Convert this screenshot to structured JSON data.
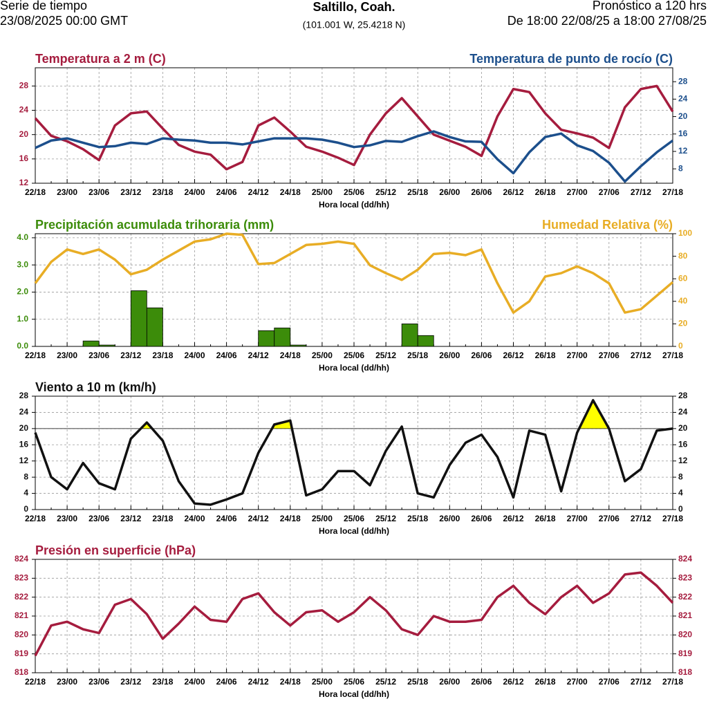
{
  "header": {
    "left_1": "Serie de tiempo",
    "left_2": "23/08/2025 00:00 GMT",
    "title": "Saltillo, Coah.",
    "subtitle": "(101.001 W, 25.4218 N)",
    "right_1": "Pronóstico a 120 hrs",
    "right_2": "De 18:00 22/08/25 a 18:00 27/08/25"
  },
  "chart_data": [
    {
      "type": "line",
      "xlabel": "Hora local (dd/hh)",
      "grid": true,
      "categories": [
        "22/18",
        null,
        "23/00",
        null,
        "23/06",
        null,
        "23/12",
        null,
        "23/18",
        null,
        "24/00",
        null,
        "24/06",
        null,
        "24/12",
        null,
        "24/18",
        null,
        "25/00",
        null,
        "25/06",
        null,
        "25/12",
        null,
        "25/18",
        null,
        "26/00",
        null,
        "26/06",
        null,
        "26/12",
        null,
        "26/18",
        null,
        "27/00",
        null,
        "27/06",
        null,
        "27/12",
        null,
        "27/18"
      ],
      "ylim": [
        12,
        31
      ],
      "yticks": [
        12,
        16,
        20,
        24,
        28
      ],
      "y2lim": [
        4.7,
        31.2
      ],
      "y2ticks": [
        8,
        12,
        16,
        20,
        24,
        28
      ],
      "series": [
        {
          "name": "Temperatura a 2 m (C)",
          "color": "#a51c3e",
          "values": [
            22.7,
            19.8,
            18.9,
            17.6,
            15.8,
            21.5,
            23.5,
            23.8,
            21.0,
            18.3,
            17.2,
            16.7,
            14.3,
            15.5,
            21.5,
            22.8,
            20.5,
            18.0,
            17.2,
            16.2,
            15.0,
            20.0,
            23.5,
            26.0,
            23.0,
            20.0,
            19.0,
            18.0,
            16.5,
            23.0,
            27.5,
            27.0,
            23.5,
            20.8,
            20.2,
            19.5,
            17.8,
            24.5,
            27.5,
            28.0,
            23.8
          ]
        },
        {
          "name": "Temperatura de punto de rocío (C)",
          "color": "#1c4f8c",
          "axis": "y2",
          "values": [
            12.8,
            14.5,
            15.0,
            14.0,
            13.0,
            13.2,
            14.0,
            13.7,
            15.0,
            14.7,
            14.5,
            14.0,
            14.0,
            13.6,
            14.3,
            15.0,
            15.0,
            15.0,
            14.7,
            14.0,
            13.0,
            13.4,
            14.4,
            14.2,
            15.5,
            16.6,
            15.3,
            14.3,
            14.2,
            10.2,
            7.0,
            11.8,
            15.3,
            16.1,
            13.4,
            12.1,
            9.4,
            5.1,
            8.6,
            11.8,
            14.5
          ]
        }
      ]
    },
    {
      "type": "combo",
      "xlabel": "Hora local (dd/hh)",
      "grid": true,
      "categories": [
        "22/18",
        null,
        "23/00",
        null,
        "23/06",
        null,
        "23/12",
        null,
        "23/18",
        null,
        "24/00",
        null,
        "24/06",
        null,
        "24/12",
        null,
        "24/18",
        null,
        "25/00",
        null,
        "25/06",
        null,
        "25/12",
        null,
        "25/18",
        null,
        "26/00",
        null,
        "26/06",
        null,
        "26/12",
        null,
        "26/18",
        null,
        "27/00",
        null,
        "27/06",
        null,
        "27/12",
        null,
        "27/18"
      ],
      "ylim": [
        0,
        4.15
      ],
      "yticks": [
        {
          "value": 0,
          "label": "0.0"
        },
        {
          "value": 1,
          "label": "1.0"
        },
        {
          "value": 2,
          "label": "2.0"
        },
        {
          "value": 3,
          "label": "3.0"
        },
        {
          "value": 4,
          "label": "4.0"
        }
      ],
      "y2lim": [
        0,
        100
      ],
      "y2ticks": [
        0,
        20,
        40,
        60,
        80,
        100
      ],
      "series": [
        {
          "name": "Precipitación acumulada trihoraria (mm)",
          "color": "#3c8c0a",
          "type": "bar",
          "values": [
            0,
            0,
            0,
            0,
            0.2,
            0.05,
            0,
            2.05,
            1.42,
            0,
            0,
            0,
            0,
            0,
            0,
            0.58,
            0.68,
            0.05,
            0,
            0,
            0,
            0,
            0,
            0,
            0.83,
            0.4,
            0,
            0,
            0,
            0,
            0,
            0,
            0,
            0,
            0,
            0,
            0,
            0,
            0,
            0,
            0
          ]
        },
        {
          "name": "Humedad Relativa (%)",
          "color": "#e8ad25",
          "axis": "y2",
          "values": [
            56,
            75,
            86,
            82,
            86,
            77,
            64,
            68,
            77,
            85,
            93,
            95,
            100,
            99,
            73,
            74,
            82,
            90,
            91,
            93,
            91,
            72,
            65,
            59,
            68,
            82,
            83,
            81,
            86,
            56,
            30,
            40,
            62,
            65,
            71,
            65,
            56,
            30,
            33,
            45,
            57
          ]
        }
      ]
    },
    {
      "type": "line",
      "title": "Viento a 10 m (km/h)",
      "xlabel": "Hora local (dd/hh)",
      "grid": true,
      "threshold": 20,
      "fill_color": "#ffff00",
      "categories": [
        "22/18",
        null,
        "23/00",
        null,
        "23/06",
        null,
        "23/12",
        null,
        "23/18",
        null,
        "24/00",
        null,
        "24/06",
        null,
        "24/12",
        null,
        "24/18",
        null,
        "25/00",
        null,
        "25/06",
        null,
        "25/12",
        null,
        "25/18",
        null,
        "26/00",
        null,
        "26/06",
        null,
        "26/12",
        null,
        "26/18",
        null,
        "27/00",
        null,
        "27/06",
        null,
        "27/12",
        null,
        "27/18"
      ],
      "ylim": [
        0,
        28
      ],
      "yticks": [
        0,
        4,
        8,
        12,
        16,
        20,
        24,
        28
      ],
      "y2lim": [
        0,
        28
      ],
      "y2ticks": [
        0,
        4,
        8,
        12,
        16,
        20,
        24,
        28
      ],
      "series": [
        {
          "color": "#111111",
          "values": [
            19,
            8,
            5,
            11.5,
            6.5,
            5,
            17.5,
            21.5,
            17,
            7,
            1.5,
            1.2,
            2.5,
            4,
            14,
            21,
            22,
            3.5,
            5,
            9.5,
            9.5,
            6,
            14.5,
            20.5,
            4,
            3,
            11,
            16.5,
            18.5,
            13,
            3,
            19.5,
            18.5,
            4.5,
            19,
            27,
            20,
            7,
            10,
            19.5,
            20
          ]
        }
      ]
    },
    {
      "type": "line",
      "title": "Presión en superficie (hPa)",
      "xlabel": "Hora local (dd/hh)",
      "grid": true,
      "categories": [
        "22/18",
        null,
        "23/00",
        null,
        "23/06",
        null,
        "23/12",
        null,
        "23/18",
        null,
        "24/00",
        null,
        "24/06",
        null,
        "24/12",
        null,
        "24/18",
        null,
        "25/00",
        null,
        "25/06",
        null,
        "25/12",
        null,
        "25/18",
        null,
        "26/00",
        null,
        "26/06",
        null,
        "26/12",
        null,
        "26/18",
        null,
        "27/00",
        null,
        "27/06",
        null,
        "27/12",
        null,
        "27/18"
      ],
      "ylim": [
        818,
        824
      ],
      "yticks": [
        818,
        819,
        820,
        821,
        822,
        823,
        824
      ],
      "y2lim": [
        818,
        824
      ],
      "y2ticks": [
        818,
        819,
        820,
        821,
        822,
        823,
        824
      ],
      "series": [
        {
          "color": "#a51c3e",
          "values": [
            818.9,
            820.5,
            820.7,
            820.3,
            820.1,
            821.6,
            821.9,
            821.1,
            819.8,
            820.6,
            821.5,
            820.8,
            820.7,
            821.9,
            822.2,
            821.2,
            820.5,
            821.2,
            821.3,
            820.7,
            821.2,
            822.0,
            821.3,
            820.3,
            820.0,
            821.0,
            820.7,
            820.7,
            820.8,
            822.0,
            822.6,
            821.7,
            821.1,
            822.0,
            822.6,
            821.7,
            822.2,
            823.2,
            823.3,
            822.6,
            821.7
          ]
        }
      ]
    }
  ]
}
